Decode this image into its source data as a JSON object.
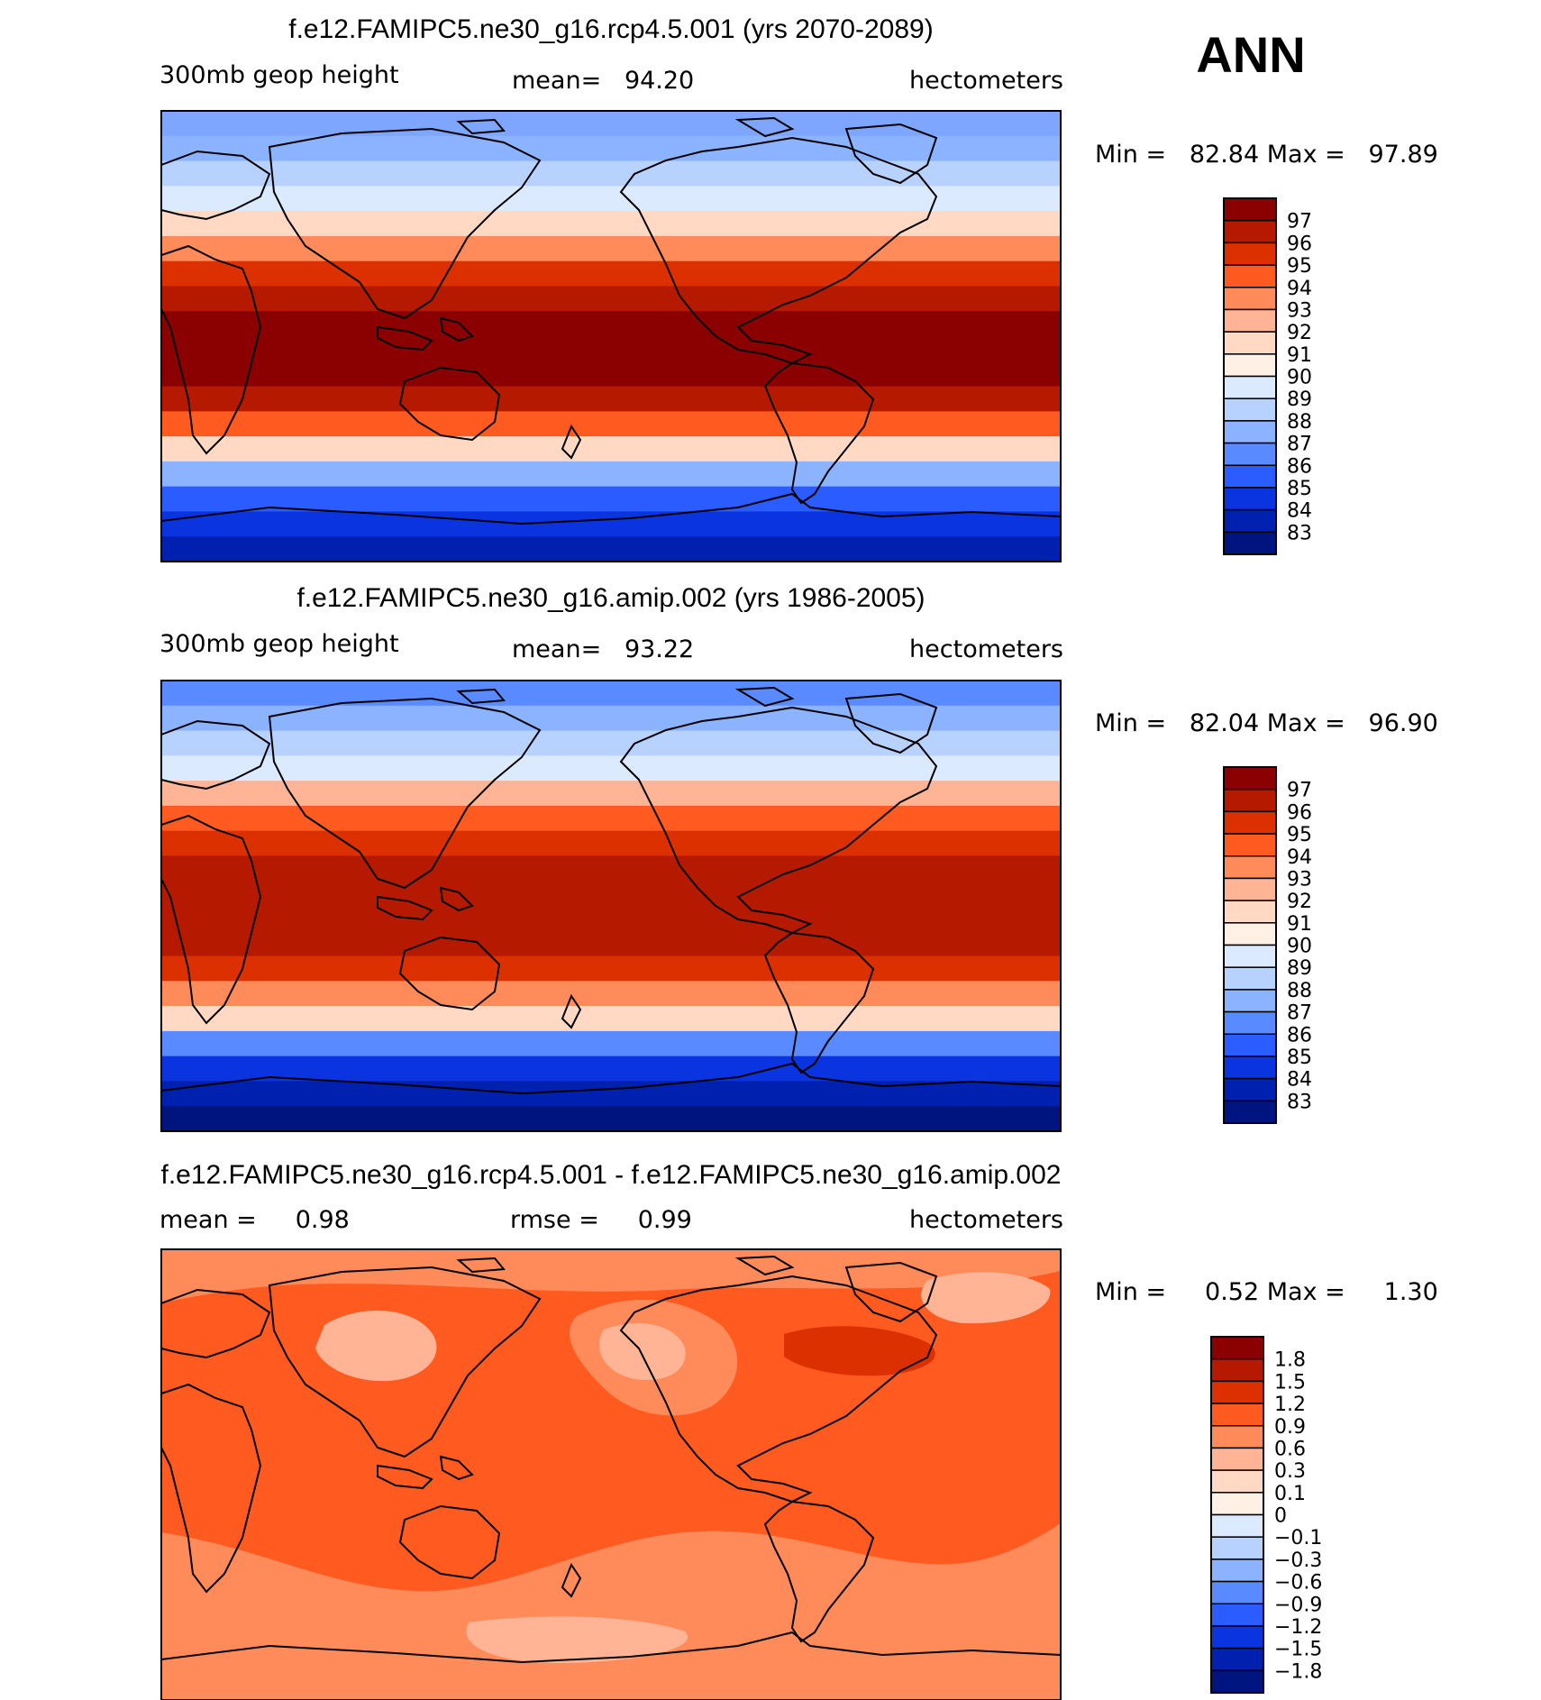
{
  "season": "ANN",
  "panels": [
    {
      "title": "f.e12.FAMIPC5.ne30_g16.rcp4.5.001 (yrs 2070-2089)",
      "left_label": "300mb geop height",
      "center_label": "mean=   94.20",
      "right_label": "hectometers",
      "minmax_label": "Min =   82.84 Max =   97.89",
      "colorbar": {
        "levels": [
          "97",
          "96",
          "95",
          "94",
          "93",
          "92",
          "91",
          "90",
          "89",
          "88",
          "87",
          "86",
          "85",
          "84",
          "83"
        ],
        "colors": [
          "#8b0000",
          "#b51a00",
          "#dd3000",
          "#ff5a1f",
          "#ff8a5a",
          "#ffb595",
          "#ffd9c4",
          "#fff0e5",
          "#dbeaff",
          "#b8d2ff",
          "#8cb3ff",
          "#5a8aff",
          "#2a5cff",
          "#0a34e0",
          "#0020b0",
          "#001480"
        ]
      },
      "map": {
        "lat_colors": [
          "#7fa6ff",
          "#8cb3ff",
          "#b8d2ff",
          "#dbeaff",
          "#ffd9c4",
          "#ff8a5a",
          "#dd3000",
          "#b51a00",
          "#8b0000",
          "#8b0000",
          "#8b0000",
          "#b51a00",
          "#ff5a1f",
          "#ffd9c4",
          "#8cb3ff",
          "#2a5cff",
          "#0a34e0",
          "#0020b0"
        ]
      }
    },
    {
      "title": "f.e12.FAMIPC5.ne30_g16.amip.002 (yrs 1986-2005)",
      "left_label": "300mb geop height",
      "center_label": "mean=   93.22",
      "right_label": "hectometers",
      "minmax_label": "Min =   82.04 Max =   96.90",
      "colorbar": {
        "levels": [
          "97",
          "96",
          "95",
          "94",
          "93",
          "92",
          "91",
          "90",
          "89",
          "88",
          "87",
          "86",
          "85",
          "84",
          "83"
        ],
        "colors": [
          "#8b0000",
          "#b51a00",
          "#dd3000",
          "#ff5a1f",
          "#ff8a5a",
          "#ffb595",
          "#ffd9c4",
          "#fff0e5",
          "#dbeaff",
          "#b8d2ff",
          "#8cb3ff",
          "#5a8aff",
          "#2a5cff",
          "#0a34e0",
          "#0020b0",
          "#001480"
        ]
      },
      "map": {
        "lat_colors": [
          "#5a8aff",
          "#8cb3ff",
          "#b8d2ff",
          "#dbeaff",
          "#ffb595",
          "#ff5a1f",
          "#dd3000",
          "#b51a00",
          "#b51a00",
          "#b51a00",
          "#b51a00",
          "#dd3000",
          "#ff8a5a",
          "#ffd9c4",
          "#5a8aff",
          "#0a34e0",
          "#0020b0",
          "#001480"
        ]
      }
    },
    {
      "title": "f.e12.FAMIPC5.ne30_g16.rcp4.5.001 - f.e12.FAMIPC5.ne30_g16.amip.002",
      "left_label": "mean =     0.98",
      "center_label": "rmse =     0.99",
      "right_label": "hectometers",
      "minmax_label": "Min =     0.52 Max =     1.30",
      "colorbar": {
        "levels": [
          "1.8",
          "1.5",
          "1.2",
          "0.9",
          "0.6",
          "0.3",
          "0.1",
          "0",
          "−0.1",
          "−0.3",
          "−0.6",
          "−0.9",
          "−1.2",
          "−1.5",
          "−1.8"
        ],
        "colors": [
          "#8b0000",
          "#b51a00",
          "#dd3000",
          "#ff5a1f",
          "#ff8a5a",
          "#ffb595",
          "#ffd9c4",
          "#fff0e5",
          "#dbeaff",
          "#b8d2ff",
          "#8cb3ff",
          "#5a8aff",
          "#2a5cff",
          "#0a34e0",
          "#0020b0",
          "#001480"
        ]
      },
      "map": {
        "base_color": "#ff5a1f",
        "light_color": "#ff8a5a",
        "pale_color": "#ffb595",
        "dark_color": "#dd3000"
      }
    }
  ]
}
